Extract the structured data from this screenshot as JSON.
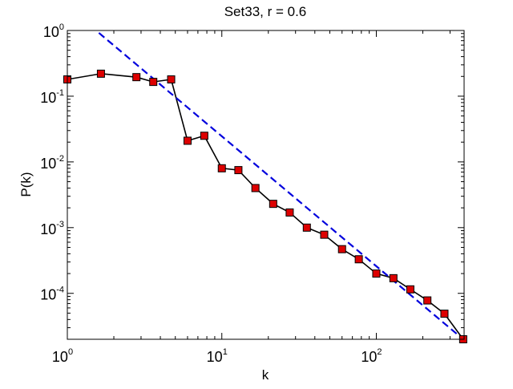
{
  "chart_data": {
    "type": "line",
    "title": "Set33, r = 0.6",
    "xlabel": "k",
    "ylabel": "P(k)",
    "xscale": "log",
    "yscale": "log",
    "xlim": [
      1,
      370
    ],
    "ylim": [
      2e-05,
      1
    ],
    "grid": false,
    "legend": "none",
    "x_ticks": [
      {
        "base": "10",
        "exp": "0",
        "value": 1
      },
      {
        "base": "10",
        "exp": "1",
        "value": 10
      },
      {
        "base": "10",
        "exp": "2",
        "value": 100
      }
    ],
    "y_ticks": [
      {
        "base": "10",
        "exp": "0",
        "value": 1
      },
      {
        "base": "10",
        "exp": "-1",
        "value": 0.1
      },
      {
        "base": "10",
        "exp": "-2",
        "value": 0.01
      },
      {
        "base": "10",
        "exp": "-3",
        "value": 0.001
      },
      {
        "base": "10",
        "exp": "-4",
        "value": 0.0001
      }
    ],
    "series": [
      {
        "style": "solid line with square markers",
        "line_color": "#000000",
        "marker_color": "#dd0000",
        "x": [
          1,
          1.65,
          2.8,
          3.6,
          4.7,
          6,
          7.7,
          10,
          12.8,
          16.5,
          21.5,
          27.5,
          35.5,
          46,
          60,
          77,
          100,
          129,
          166,
          214,
          276,
          365
        ],
        "y": [
          0.18,
          0.22,
          0.195,
          0.165,
          0.18,
          0.021,
          0.025,
          0.008,
          0.0075,
          0.004,
          0.0023,
          0.0017,
          0.001,
          0.00078,
          0.00047,
          0.00033,
          0.0002,
          0.00017,
          0.000115,
          7.8e-05,
          4.9e-05,
          2e-05
        ]
      },
      {
        "style": "dashed fit line",
        "line_color": "#0000dd",
        "x": [
          1.6,
          365
        ],
        "y": [
          0.92,
          2e-05
        ]
      }
    ]
  }
}
